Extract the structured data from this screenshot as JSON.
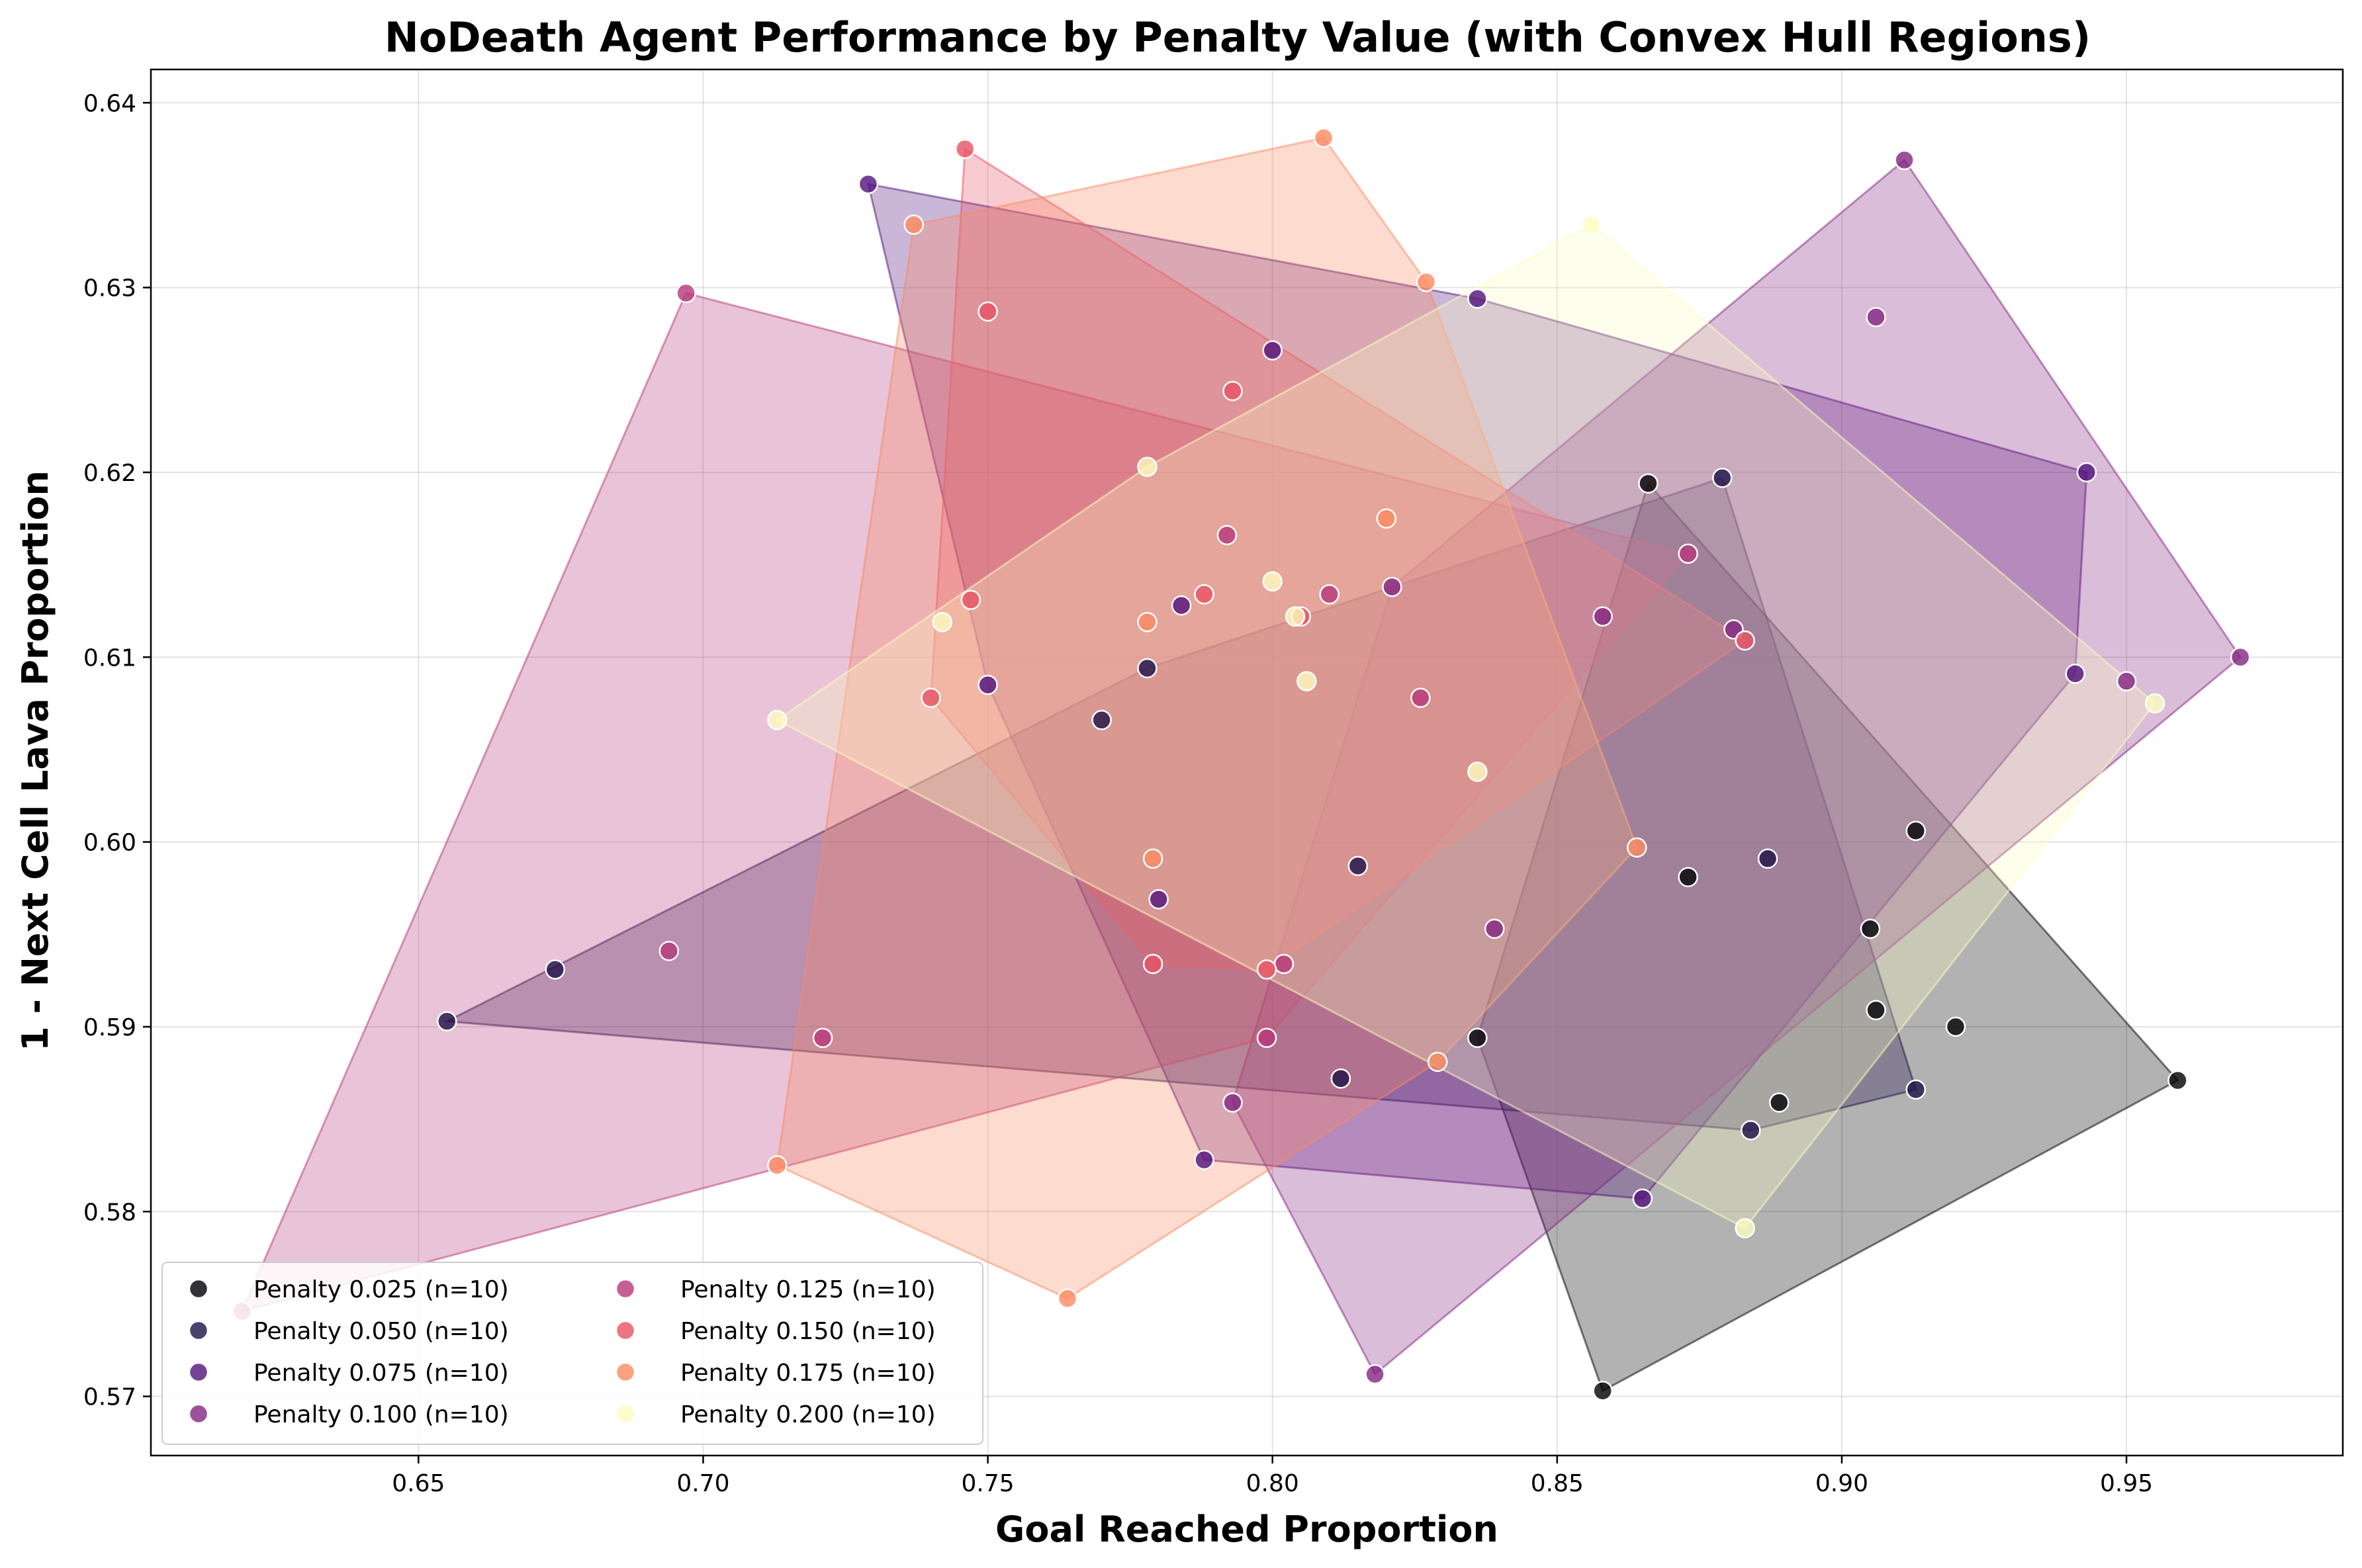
{
  "chart_data": {
    "type": "scatter",
    "title": "NoDeath Agent Performance by Penalty Value (with Convex Hull Regions)",
    "xlabel": "Goal Reached Proportion",
    "ylabel": "1 - Next Cell Lava Proportion",
    "xlim": [
      0.603,
      0.988
    ],
    "ylim": [
      0.5668,
      0.6418
    ],
    "xticks": [
      0.65,
      0.7,
      0.75,
      0.8,
      0.85,
      0.9,
      0.95
    ],
    "xtick_labels": [
      "0.65",
      "0.70",
      "0.75",
      "0.80",
      "0.85",
      "0.90",
      "0.95"
    ],
    "yticks": [
      0.57,
      0.58,
      0.59,
      0.6,
      0.61,
      0.62,
      0.63,
      0.64
    ],
    "ytick_labels": [
      "0.57",
      "0.58",
      "0.59",
      "0.60",
      "0.61",
      "0.62",
      "0.63",
      "0.64"
    ],
    "grid": true,
    "legend_position": "lower-left",
    "legend_columns": 2,
    "convex_hulls": true,
    "series": [
      {
        "name": "Penalty 0.025 (n=10)",
        "color": "#000004",
        "points": [
          [
            0.866,
            0.6194
          ],
          [
            0.858,
            0.5703
          ],
          [
            0.959,
            0.5871
          ],
          [
            0.913,
            0.6006
          ],
          [
            0.905,
            0.5953
          ],
          [
            0.906,
            0.5909
          ],
          [
            0.92,
            0.59
          ],
          [
            0.889,
            0.5859
          ],
          [
            0.873,
            0.5981
          ],
          [
            0.836,
            0.5894
          ]
        ]
      },
      {
        "name": "Penalty 0.050 (n=10)",
        "color": "#1d1147",
        "points": [
          [
            0.655,
            0.5903
          ],
          [
            0.674,
            0.5931
          ],
          [
            0.77,
            0.6066
          ],
          [
            0.778,
            0.6094
          ],
          [
            0.815,
            0.5987
          ],
          [
            0.812,
            0.5872
          ],
          [
            0.879,
            0.6197
          ],
          [
            0.887,
            0.5991
          ],
          [
            0.884,
            0.5844
          ],
          [
            0.913,
            0.5866
          ]
        ]
      },
      {
        "name": "Penalty 0.075 (n=10)",
        "color": "#51127c",
        "points": [
          [
            0.729,
            0.6356
          ],
          [
            0.75,
            0.6085
          ],
          [
            0.78,
            0.5969
          ],
          [
            0.784,
            0.6128
          ],
          [
            0.788,
            0.5828
          ],
          [
            0.8,
            0.6266
          ],
          [
            0.836,
            0.6294
          ],
          [
            0.865,
            0.5807
          ],
          [
            0.941,
            0.6091
          ],
          [
            0.943,
            0.62
          ]
        ]
      },
      {
        "name": "Penalty 0.100 (n=10)",
        "color": "#832681",
        "points": [
          [
            0.793,
            0.5859
          ],
          [
            0.818,
            0.5712
          ],
          [
            0.821,
            0.6138
          ],
          [
            0.839,
            0.5953
          ],
          [
            0.858,
            0.6122
          ],
          [
            0.881,
            0.6115
          ],
          [
            0.906,
            0.6284
          ],
          [
            0.911,
            0.6369
          ],
          [
            0.95,
            0.6087
          ],
          [
            0.97,
            0.61
          ]
        ]
      },
      {
        "name": "Penalty 0.125 (n=10)",
        "color": "#b73779",
        "points": [
          [
            0.619,
            0.5746
          ],
          [
            0.694,
            0.5941
          ],
          [
            0.697,
            0.6297
          ],
          [
            0.721,
            0.5894
          ],
          [
            0.792,
            0.6166
          ],
          [
            0.799,
            0.5894
          ],
          [
            0.802,
            0.5934
          ],
          [
            0.81,
            0.6134
          ],
          [
            0.826,
            0.6078
          ],
          [
            0.873,
            0.6156
          ]
        ]
      },
      {
        "name": "Penalty 0.150 (n=10)",
        "color": "#e75263",
        "points": [
          [
            0.74,
            0.6078
          ],
          [
            0.746,
            0.6375
          ],
          [
            0.747,
            0.6131
          ],
          [
            0.75,
            0.6287
          ],
          [
            0.779,
            0.5934
          ],
          [
            0.788,
            0.6134
          ],
          [
            0.793,
            0.6244
          ],
          [
            0.799,
            0.5931
          ],
          [
            0.805,
            0.6122
          ],
          [
            0.883,
            0.6109
          ]
        ]
      },
      {
        "name": "Penalty 0.175 (n=10)",
        "color": "#fc8961",
        "points": [
          [
            0.713,
            0.5825
          ],
          [
            0.737,
            0.6334
          ],
          [
            0.764,
            0.5753
          ],
          [
            0.778,
            0.6119
          ],
          [
            0.779,
            0.5991
          ],
          [
            0.809,
            0.6381
          ],
          [
            0.82,
            0.6175
          ],
          [
            0.827,
            0.6303
          ],
          [
            0.829,
            0.5881
          ],
          [
            0.864,
            0.5997
          ]
        ]
      },
      {
        "name": "Penalty 0.200 (n=10)",
        "color": "#fcfdbf",
        "points": [
          [
            0.713,
            0.6066
          ],
          [
            0.742,
            0.6119
          ],
          [
            0.778,
            0.6203
          ],
          [
            0.8,
            0.6141
          ],
          [
            0.804,
            0.6122
          ],
          [
            0.806,
            0.6087
          ],
          [
            0.836,
            0.6038
          ],
          [
            0.856,
            0.6334
          ],
          [
            0.883,
            0.5791
          ],
          [
            0.955,
            0.6075
          ]
        ]
      }
    ]
  }
}
